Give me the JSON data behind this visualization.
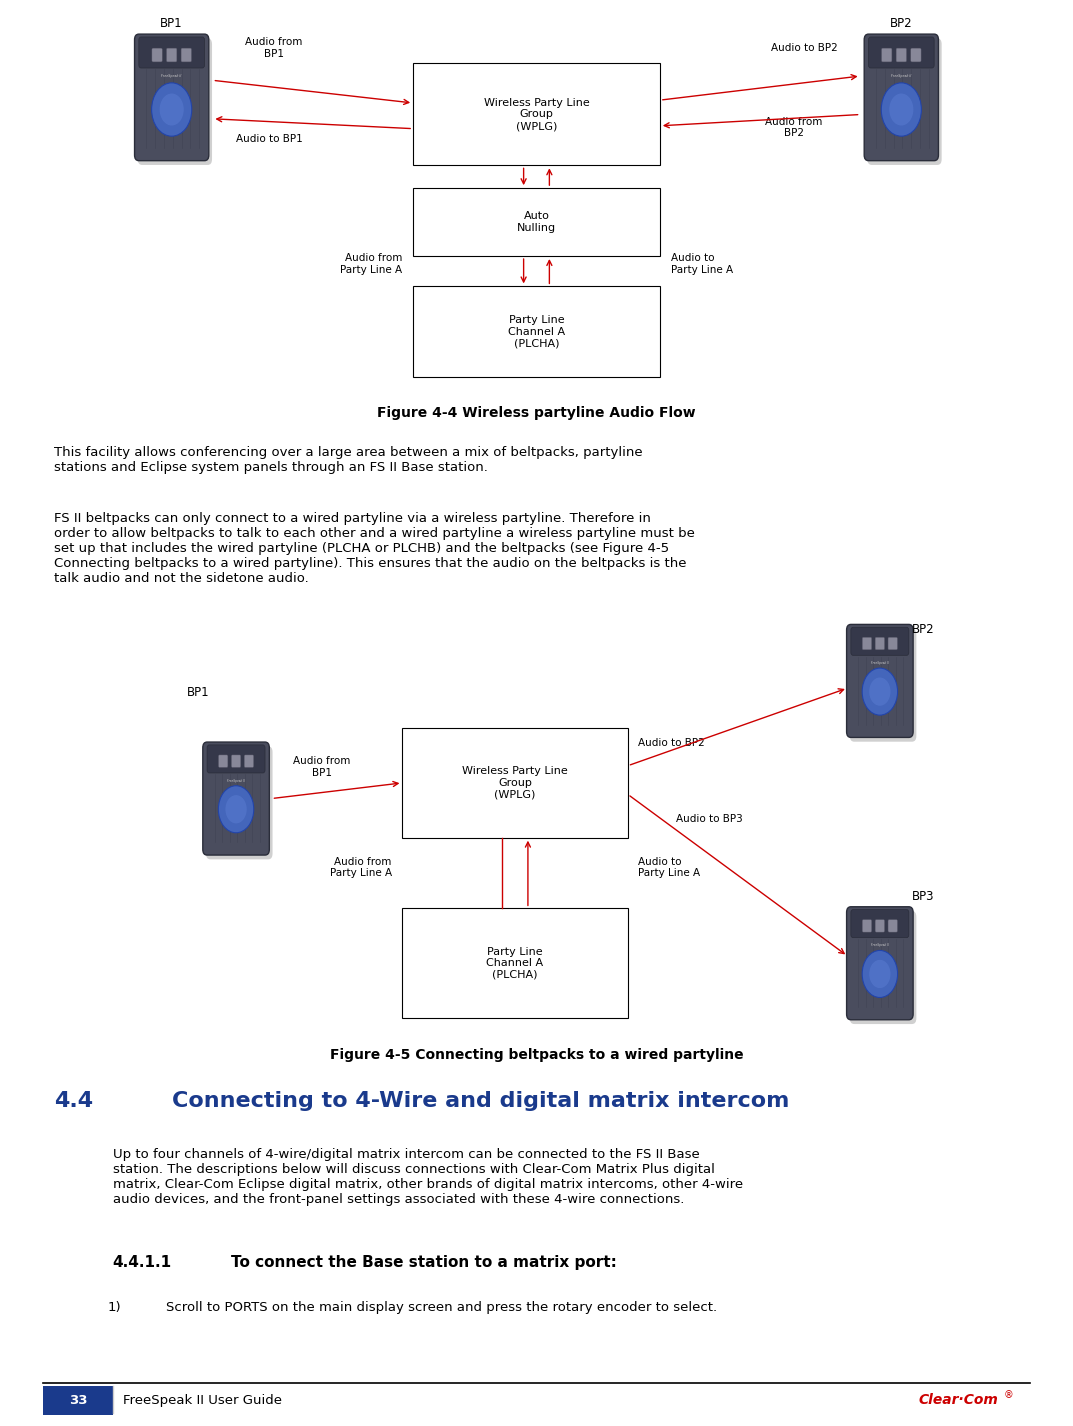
{
  "page_width": 10.73,
  "page_height": 14.26,
  "bg_color": "#ffffff",
  "arrow_color": "#cc0000",
  "text_color": "#000000",
  "heading_color": "#1a3a8c",
  "body_font_size": 9.5,
  "caption_font_size": 10,
  "heading_font_size": 16,
  "subheading_font_size": 11,
  "label_font_size": 8,
  "fig44_caption": "Figure 4-4 Wireless partyline Audio Flow",
  "fig45_caption": "Figure 4-5 Connecting beltpacks to a wired partyline",
  "para1": "This facility allows conferencing over a large area between a mix of beltpacks, partyline\nstations and Eclipse system panels through an FS II Base station.",
  "para2": "FS II beltpacks can only connect to a wired partyline via a wireless partyline. Therefore in\norder to allow beltpacks to talk to each other and a wired partyline a wireless partyline must be\nset up that includes the wired partyline (PLCHA or PLCHB) and the beltpacks (see Figure 4-5\nConnecting beltpacks to a wired partyline). This ensures that the audio on the beltpacks is the\ntalk audio and not the sidetone audio.",
  "section_num": "4.4",
  "section_title": "Connecting to 4-Wire and digital matrix intercom",
  "section_body": "Up to four channels of 4-wire/digital matrix intercom can be connected to the FS II Base\nstation. The descriptions below will discuss connections with Clear-Com Matrix Plus digital\nmatrix, Clear-Com Eclipse digital matrix, other brands of digital matrix intercoms, other 4-wire\naudio devices, and the front-panel settings associated with these 4-wire connections.",
  "footer_page": "33",
  "footer_text": "FreeSpeak II User Guide"
}
